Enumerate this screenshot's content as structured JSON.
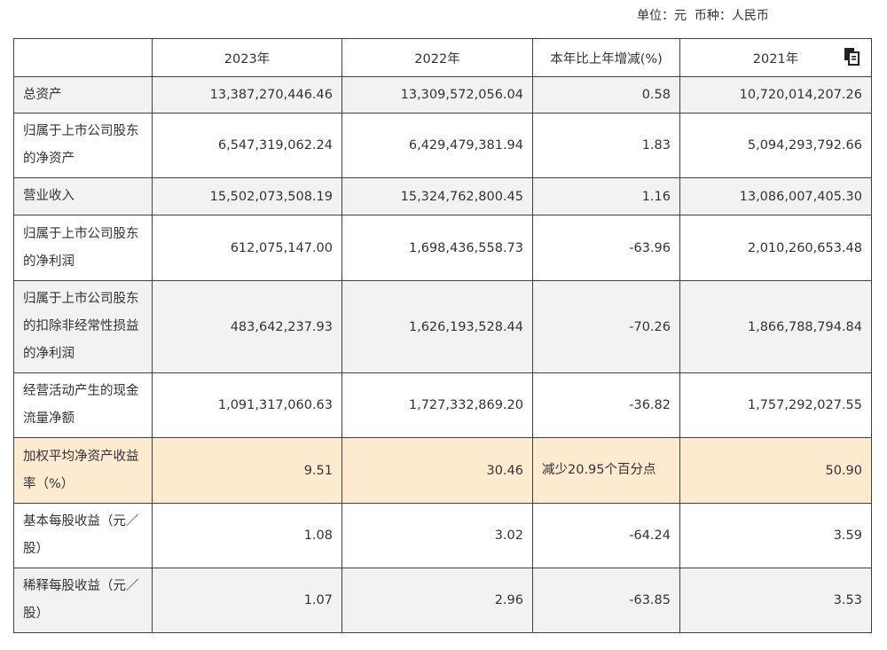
{
  "unit_text": "单位：元  币种：人民币",
  "icons": {
    "copy": "copy-icon"
  },
  "headers": [
    "",
    "2023年",
    "2022年",
    "本年比上年增减(%)",
    "2021年"
  ],
  "rows": [
    {
      "label": "总资产",
      "v2023": "13,387,270,446.46",
      "v2022": "13,309,572,056.04",
      "change": "0.58",
      "v2021": "10,720,014,207.26"
    },
    {
      "label": "归属于上市公司股东的净资产",
      "v2023": "6,547,319,062.24",
      "v2022": "6,429,479,381.94",
      "change": "1.83",
      "v2021": "5,094,293,792.66"
    },
    {
      "label": "营业收入",
      "v2023": "15,502,073,508.19",
      "v2022": "15,324,762,800.45",
      "change": "1.16",
      "v2021": "13,086,007,405.30"
    },
    {
      "label": "归属于上市公司股东的净利润",
      "v2023": "612,075,147.00",
      "v2022": "1,698,436,558.73",
      "change": "-63.96",
      "v2021": "2,010,260,653.48"
    },
    {
      "label": "归属于上市公司股东的扣除非经常性损益的净利润",
      "v2023": "483,642,237.93",
      "v2022": "1,626,193,528.44",
      "change": "-70.26",
      "v2021": "1,866,788,794.84"
    },
    {
      "label": "经营活动产生的现金流量净额",
      "v2023": "1,091,317,060.63",
      "v2022": "1,727,332,869.20",
      "change": "-36.82",
      "v2021": "1,757,292,027.55"
    },
    {
      "label": "加权平均净资产收益率（%）",
      "v2023": "9.51",
      "v2022": "30.46",
      "change": "减少20.95个百分点",
      "v2021": "50.90"
    },
    {
      "label": "基本每股收益（元／股）",
      "v2023": "1.08",
      "v2022": "3.02",
      "change": "-64.24",
      "v2021": "3.59"
    },
    {
      "label": "稀释每股收益（元／股）",
      "v2023": "1.07",
      "v2022": "2.96",
      "change": "-63.85",
      "v2021": "3.53"
    }
  ],
  "colors": {
    "gray_row": "#f2f2f2",
    "highlight_row": "#fdebd0",
    "border": "#404040"
  }
}
